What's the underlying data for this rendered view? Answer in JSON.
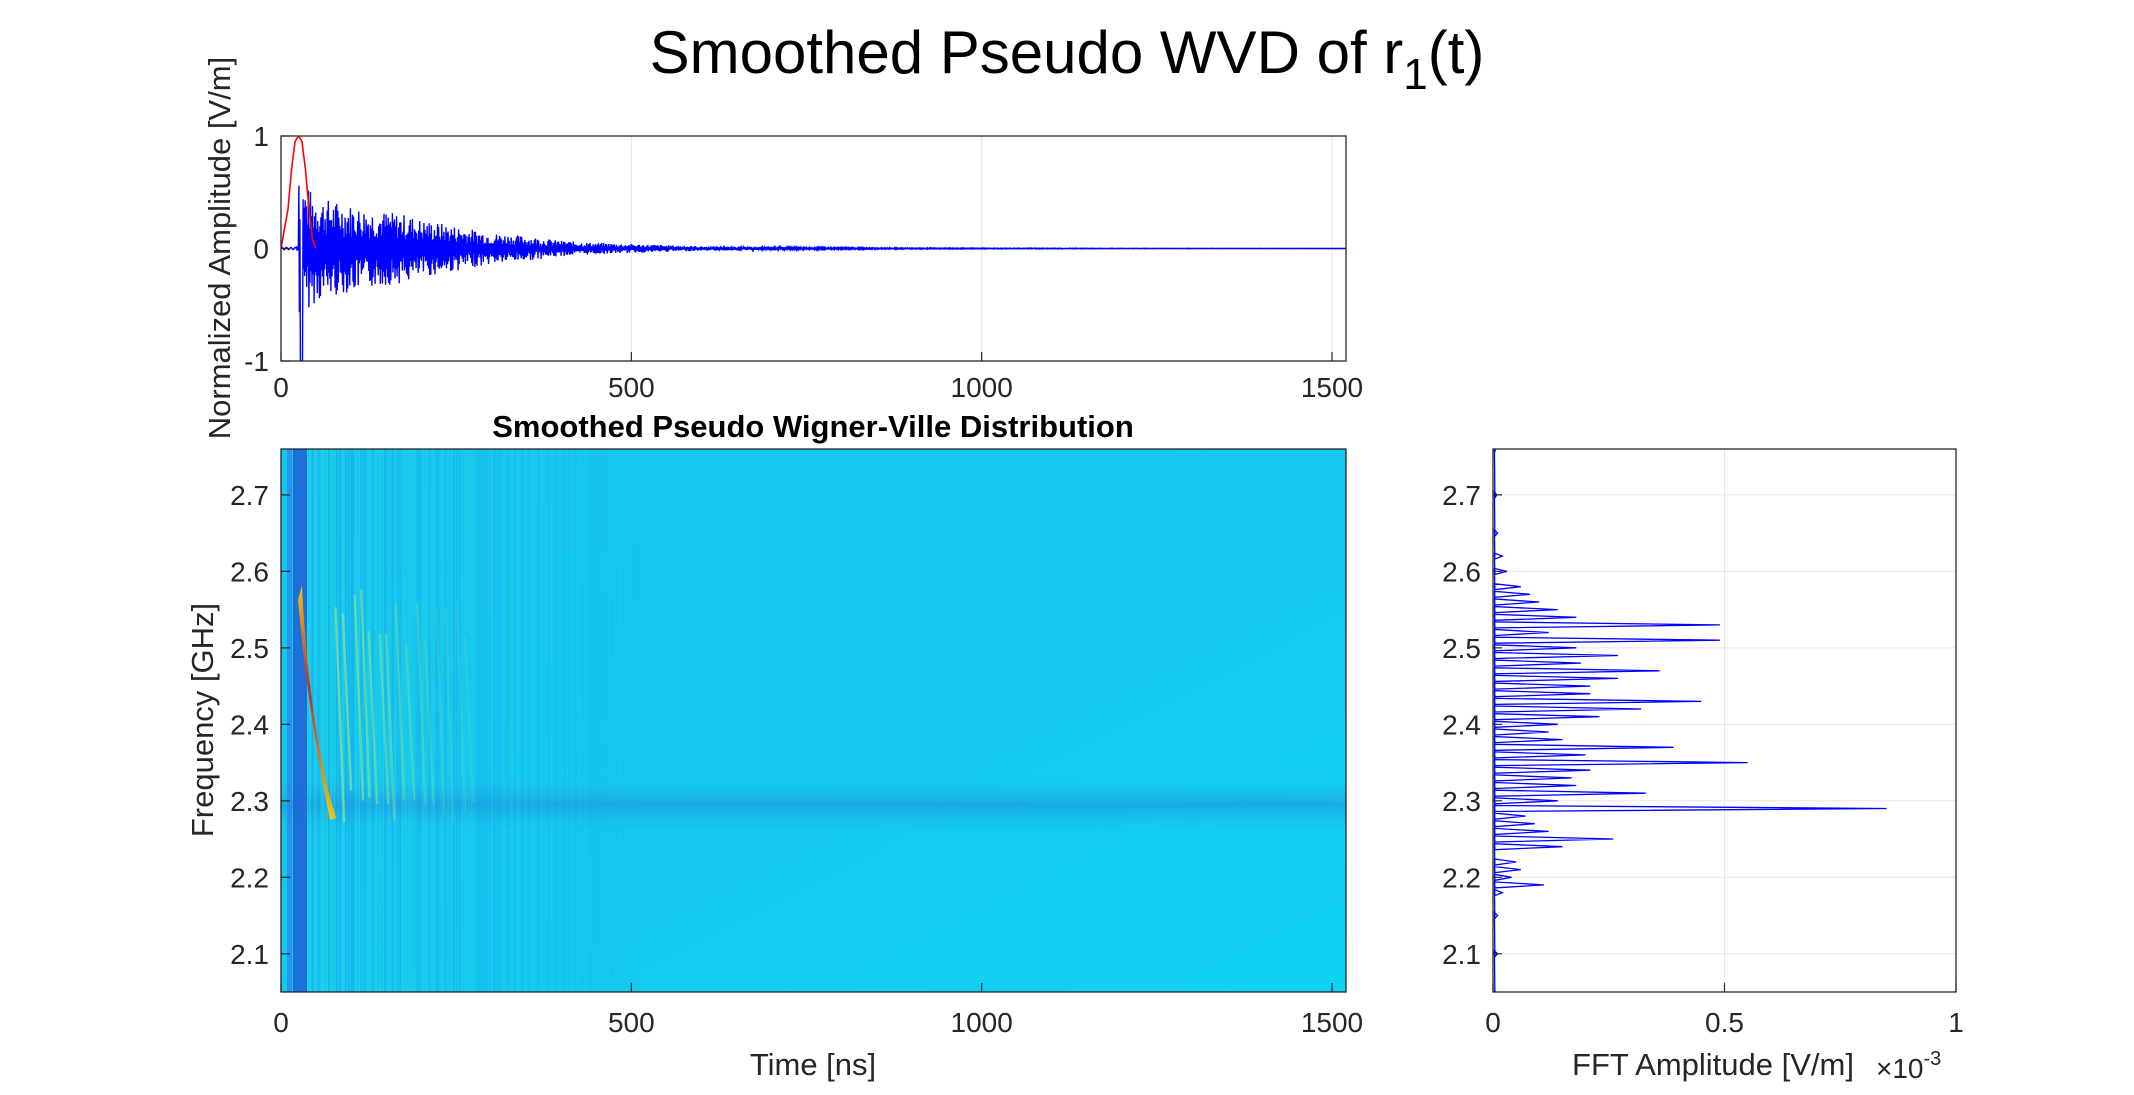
{
  "figure": {
    "title_main": "Smoothed Pseudo WVD of r",
    "title_sub": "1",
    "title_tail": "(t)"
  },
  "chart_data": [
    {
      "id": "waveform",
      "type": "line",
      "title": "",
      "xlabel": "",
      "ylabel": "Normalized Amplitude [V/m]",
      "xlim": [
        0,
        1520
      ],
      "ylim": [
        -1,
        1
      ],
      "xticks": [
        0,
        500,
        1000,
        1500
      ],
      "yticks": [
        -1,
        0,
        1
      ],
      "grid": true,
      "series": [
        {
          "color": "#0000ff",
          "style": "decaying-oscillation",
          "envelope": {
            "x": [
              25,
              30,
              45,
              60,
              90,
              120,
              150,
              180,
              200,
              250,
              300,
              350,
              400,
              450,
              500,
              550,
              600,
              700,
              800,
              900,
              1000,
              1200,
              1520
            ],
            "y": [
              1.0,
              0.6,
              0.5,
              0.45,
              0.4,
              0.36,
              0.33,
              0.3,
              0.26,
              0.2,
              0.14,
              0.11,
              0.07,
              0.05,
              0.04,
              0.03,
              0.02,
              0.012,
              0.008,
              0.005,
              0.004,
              0.002,
              0.001
            ]
          }
        },
        {
          "color": "#ff0000",
          "style": "gaussian-pulse",
          "x": [
            0,
            10,
            15,
            20,
            25,
            30,
            35,
            40,
            45,
            50
          ],
          "y": [
            0,
            0.35,
            0.7,
            0.95,
            1.0,
            0.95,
            0.7,
            0.35,
            0.08,
            0
          ]
        }
      ]
    },
    {
      "id": "spwvd",
      "type": "heatmap",
      "title": "Smoothed Pseudo Wigner-Ville Distribution",
      "xlabel": "Time [ns]",
      "ylabel": "Frequency [GHz]",
      "xlim": [
        0,
        1520
      ],
      "ylim": [
        2.05,
        2.76
      ],
      "xticks": [
        0,
        500,
        1000,
        1500
      ],
      "yticks": [
        2.1,
        2.2,
        2.3,
        2.4,
        2.5,
        2.6,
        2.7
      ],
      "colormap": "jet",
      "background_color": "#13c8ee",
      "features": [
        {
          "t": 25,
          "f": [
            2.05,
            2.76
          ],
          "kind": "dark-band"
        },
        {
          "t": [
            40,
            90
          ],
          "f": [
            2.28,
            2.6
          ],
          "kind": "hot-chirp"
        },
        {
          "t": [
            90,
            280
          ],
          "f": [
            2.25,
            2.58
          ],
          "kind": "warm-streaks"
        },
        {
          "t": [
            0,
            1520
          ],
          "f": [
            2.27,
            2.3
          ],
          "kind": "cool-band"
        }
      ]
    },
    {
      "id": "spectrum",
      "type": "line",
      "title": "",
      "xlabel": "FFT Amplitude [V/m]",
      "x_multiplier": "×10",
      "x_multiplier_exp": "-3",
      "ylabel": "",
      "xlim": [
        0,
        1
      ],
      "ylim": [
        2.05,
        2.76
      ],
      "xticks": [
        "0",
        "0.5",
        "1"
      ],
      "yticks": [
        2.1,
        2.2,
        2.3,
        2.4,
        2.5,
        2.6,
        2.7
      ],
      "grid": true,
      "series": [
        {
          "color": "#0000ff",
          "peaks": [
            {
              "f": 2.05,
              "a": 0.005
            },
            {
              "f": 2.1,
              "a": 0.01
            },
            {
              "f": 2.15,
              "a": 0.01
            },
            {
              "f": 2.18,
              "a": 0.02
            },
            {
              "f": 2.19,
              "a": 0.11
            },
            {
              "f": 2.2,
              "a": 0.04
            },
            {
              "f": 2.21,
              "a": 0.06
            },
            {
              "f": 2.22,
              "a": 0.05
            },
            {
              "f": 2.24,
              "a": 0.15
            },
            {
              "f": 2.25,
              "a": 0.26
            },
            {
              "f": 2.26,
              "a": 0.12
            },
            {
              "f": 2.27,
              "a": 0.09
            },
            {
              "f": 2.28,
              "a": 0.07
            },
            {
              "f": 2.29,
              "a": 0.85
            },
            {
              "f": 2.3,
              "a": 0.14
            },
            {
              "f": 2.31,
              "a": 0.33
            },
            {
              "f": 2.32,
              "a": 0.18
            },
            {
              "f": 2.33,
              "a": 0.17
            },
            {
              "f": 2.34,
              "a": 0.21
            },
            {
              "f": 2.35,
              "a": 0.55
            },
            {
              "f": 2.36,
              "a": 0.2
            },
            {
              "f": 2.37,
              "a": 0.39
            },
            {
              "f": 2.38,
              "a": 0.15
            },
            {
              "f": 2.39,
              "a": 0.12
            },
            {
              "f": 2.4,
              "a": 0.14
            },
            {
              "f": 2.41,
              "a": 0.23
            },
            {
              "f": 2.42,
              "a": 0.32
            },
            {
              "f": 2.43,
              "a": 0.45
            },
            {
              "f": 2.44,
              "a": 0.21
            },
            {
              "f": 2.45,
              "a": 0.21
            },
            {
              "f": 2.46,
              "a": 0.27
            },
            {
              "f": 2.47,
              "a": 0.36
            },
            {
              "f": 2.48,
              "a": 0.19
            },
            {
              "f": 2.49,
              "a": 0.27
            },
            {
              "f": 2.5,
              "a": 0.18
            },
            {
              "f": 2.51,
              "a": 0.49
            },
            {
              "f": 2.52,
              "a": 0.12
            },
            {
              "f": 2.53,
              "a": 0.49
            },
            {
              "f": 2.54,
              "a": 0.18
            },
            {
              "f": 2.55,
              "a": 0.14
            },
            {
              "f": 2.56,
              "a": 0.1
            },
            {
              "f": 2.57,
              "a": 0.08
            },
            {
              "f": 2.58,
              "a": 0.06
            },
            {
              "f": 2.6,
              "a": 0.03
            },
            {
              "f": 2.62,
              "a": 0.02
            },
            {
              "f": 2.65,
              "a": 0.01
            },
            {
              "f": 2.7,
              "a": 0.008
            },
            {
              "f": 2.76,
              "a": 0.005
            }
          ]
        }
      ]
    }
  ]
}
